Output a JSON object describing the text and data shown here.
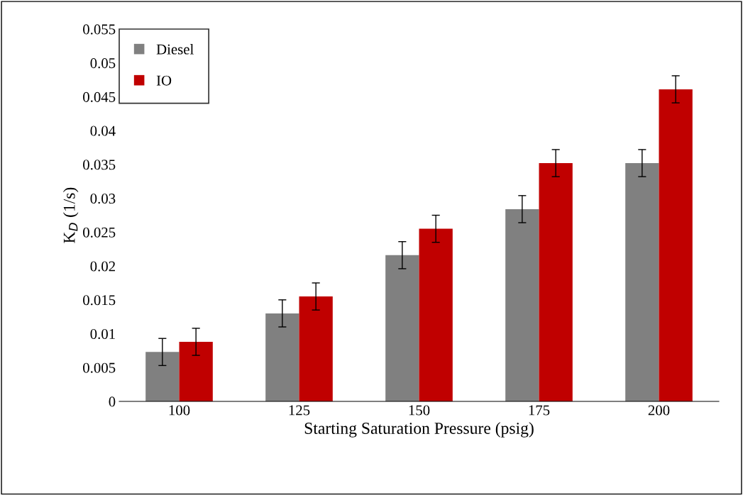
{
  "chart_data": {
    "type": "bar",
    "xlabel": "Starting Saturation Pressure (psig)",
    "ylabel": "K$_{D}$ (1/s)",
    "categories": [
      "100",
      "125",
      "150",
      "175",
      "200"
    ],
    "series": [
      {
        "name": "Diesel",
        "color": "#808080",
        "values": [
          0.0073,
          0.013,
          0.0216,
          0.0284,
          0.0352
        ],
        "errors": [
          0.002,
          0.002,
          0.002,
          0.002,
          0.002
        ]
      },
      {
        "name": "IO",
        "color": "#c00000",
        "values": [
          0.0088,
          0.0155,
          0.0255,
          0.0352,
          0.0461
        ],
        "errors": [
          0.002,
          0.002,
          0.002,
          0.002,
          0.002
        ]
      }
    ],
    "ylim": [
      0,
      0.055
    ],
    "yticks": [
      0,
      0.005,
      0.01,
      0.015,
      0.02,
      0.025,
      0.03,
      0.035,
      0.04,
      0.045,
      0.05,
      0.055
    ],
    "grid": false,
    "legend": "top left"
  }
}
